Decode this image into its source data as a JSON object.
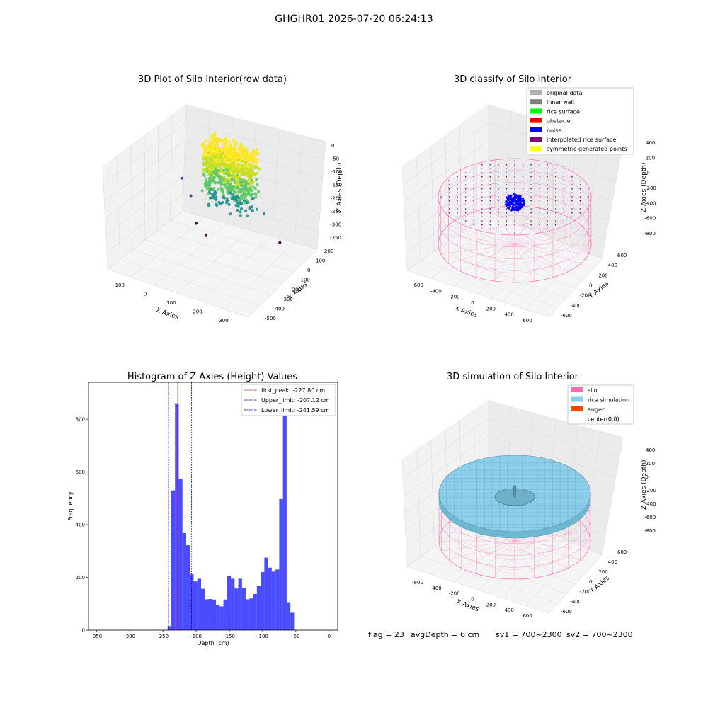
{
  "suptitle": "GHGHR01 2026-07-20 06:24:13",
  "footer": {
    "flag": "flag = 23",
    "avg_depth": "avgDepth = 6 cm",
    "sv1": "sv1 = 700~2300",
    "sv2": "sv2 = 700~2300"
  },
  "chart_data": [
    {
      "id": "raw3d",
      "type": "scatter",
      "projection": "3d",
      "title": "3D Plot of Silo Interior(row data)",
      "xlabel": "X Axies",
      "ylabel": "Y Axies",
      "zlabel": "Z Axies (Depth)",
      "x_ticks": [
        "-100",
        "0",
        "100",
        "200",
        "300"
      ],
      "y_ticks": [
        "200",
        "100",
        "0",
        "-100",
        "-200",
        "-300",
        "-400",
        "-500"
      ],
      "z_ticks": [
        "0",
        "-50",
        "-100",
        "-150",
        "-200",
        "-250",
        "-300",
        "-350"
      ],
      "xlim": [
        -150,
        330
      ],
      "ylim": [
        -520,
        220
      ],
      "zlim": [
        -370,
        10
      ],
      "colormap": "viridis",
      "cluster": {
        "x_range": [
          20,
          180
        ],
        "y_range": [
          -60,
          80
        ],
        "z_range": [
          -230,
          0
        ]
      },
      "outliers": [
        {
          "x": -120,
          "y": 180,
          "z": -260
        },
        {
          "x": -80,
          "y": 150,
          "z": -300
        },
        {
          "x": -30,
          "y": 50,
          "z": -350
        },
        {
          "x": 20,
          "y": 0,
          "z": -360
        },
        {
          "x": 260,
          "y": 40,
          "z": -310
        },
        {
          "x": 200,
          "y": 60,
          "z": -230
        },
        {
          "x": 20,
          "y": 80,
          "z": -150
        },
        {
          "x": 40,
          "y": 20,
          "z": -210
        }
      ]
    },
    {
      "id": "classify3d",
      "type": "scatter",
      "projection": "3d",
      "title": "3D classify of Silo Interior",
      "xlabel": "X Axies",
      "ylabel": "Y Axies",
      "zlabel": "Z Axies (Depth)",
      "x_ticks": [
        "-600",
        "-400",
        "-200",
        "0",
        "200",
        "400",
        "600"
      ],
      "y_ticks": [
        "600",
        "400",
        "200",
        "0",
        "-200",
        "-400",
        "-600"
      ],
      "z_ticks": [
        "400",
        "200",
        "0",
        "-200",
        "-400",
        "-600",
        "-800"
      ],
      "legend": [
        {
          "label": "original data",
          "color": "#b0b0b0"
        },
        {
          "label": "inner wall",
          "color": "#808080"
        },
        {
          "label": "rice surface",
          "color": "#00ff00"
        },
        {
          "label": "obstacle",
          "color": "#ff0000"
        },
        {
          "label": "noise",
          "color": "#0000ff"
        },
        {
          "label": "interpolated rice surface",
          "color": "#800080"
        },
        {
          "label": "symmetric generated points",
          "color": "#ffff00"
        }
      ],
      "legend_position": "upper right",
      "silo_color": "#ff69b4"
    },
    {
      "id": "histogram",
      "type": "bar",
      "title": "Histogram of Z-Axies (Height) Values",
      "xlabel": "Depth (cm)",
      "ylabel": "Frequency",
      "xlim": [
        -362,
        13
      ],
      "ylim": [
        0,
        940
      ],
      "x_ticks": [
        -350,
        -300,
        -250,
        -200,
        -150,
        -100,
        -50,
        0
      ],
      "y_ticks": [
        0,
        200,
        400,
        600,
        800
      ],
      "bin_width": 5.6,
      "bin_start": -243,
      "values": [
        15,
        530,
        860,
        575,
        368,
        322,
        212,
        185,
        195,
        157,
        117,
        118,
        116,
        94,
        90,
        116,
        205,
        195,
        158,
        195,
        160,
        117,
        120,
        137,
        167,
        220,
        275,
        237,
        222,
        230,
        497,
        900,
        106,
        66
      ],
      "bar_color": "#0000ff",
      "bar_alpha": 0.7,
      "vlines": [
        {
          "label": "first_peak: -227.80 cm",
          "x": -227.8,
          "color": "#ff0000"
        },
        {
          "label": "Upper_limit: -207.12 cm",
          "x": -207.12,
          "color": "#0000cc"
        },
        {
          "label": "Lower_limit: -241.59 cm",
          "x": -241.59,
          "color": "#0000cc"
        }
      ],
      "legend_position": "upper right"
    },
    {
      "id": "sim3d",
      "type": "surface",
      "projection": "3d",
      "title": "3D simulation of Silo Interior",
      "xlabel": "X Axies",
      "ylabel": "Y Axies",
      "zlabel": "Z Axies (Depth)",
      "x_ticks": [
        "-600",
        "-400",
        "-200",
        "0",
        "200",
        "400",
        "600"
      ],
      "y_ticks": [
        "600",
        "400",
        "200",
        "0",
        "-200",
        "-400",
        "-600"
      ],
      "z_ticks": [
        "400",
        "200",
        "0",
        "-200",
        "-400",
        "-600",
        "-800"
      ],
      "legend": [
        {
          "label": "silo",
          "color": "#ff69b4"
        },
        {
          "label": "rice simulation",
          "color": "#87ceeb"
        },
        {
          "label": "auger",
          "color": "#ff4500"
        },
        {
          "label": "center(0,0)",
          "color": "#ffffff"
        }
      ],
      "legend_position": "upper right"
    }
  ]
}
